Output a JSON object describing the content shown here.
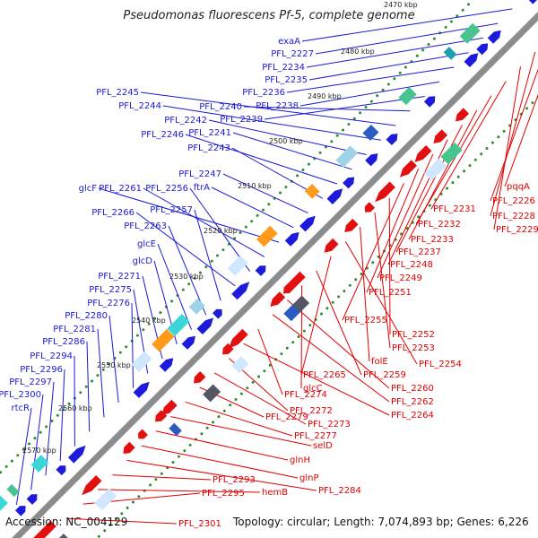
{
  "title": "Pseudomonas fluorescens Pf-5, complete genome",
  "footer": {
    "accession": "Accession: NC_004129",
    "topology": "Topology: circular; Length: 7,074,893 bp; Genes: 6,226"
  },
  "colors": {
    "backbone": "#8c8c8c",
    "forward_label": "#1a1ad4",
    "reverse_label": "#e10000",
    "gc_dots": "#2e8b2e"
  },
  "kbp_ticks": [
    "2470 kbp",
    "2480 kbp",
    "2490 kbp",
    "2500 kbp",
    "2510 kbp",
    "2520 kbp",
    "2530 kbp",
    "2540 kbp",
    "2550 kbp",
    "2560 kbp",
    "2570 kbp"
  ],
  "forward_labels": [
    "exaA",
    "PFL_2227",
    "PFL_2234",
    "PFL_2235",
    "PFL_2236",
    "PFL_2238",
    "PFL_2239",
    "PFL_2240",
    "PFL_2245",
    "PFL_2244",
    "PFL_2242",
    "PFL_2241",
    "PFL_2246",
    "PFL_2243",
    "PFL_2247",
    "ftrA",
    "glcF",
    "PFL_2261",
    "PFL_2256",
    "PFL_2266",
    "PFL_2257",
    "PFL_2263",
    "glcE",
    "glcD",
    "PFL_2271",
    "PFL_2275",
    "PFL_2276",
    "PFL_2280",
    "PFL_2281",
    "PFL_2286",
    "PFL_2294",
    "PFL_2296",
    "PFL_2297",
    "PFL_2300",
    "rtcR"
  ],
  "reverse_labels": [
    "pqqA",
    "PFL_2226",
    "PFL_2228",
    "PFL_2229",
    "PFL_2231",
    "PFL_2232",
    "PFL_2233",
    "PFL_2237",
    "PFL_2248",
    "PFL_2249",
    "PFL_2251",
    "PFL_2255",
    "PFL_2252",
    "PFL_2253",
    "folE",
    "PFL_2254",
    "PFL_2265",
    "PFL_2259",
    "glcC",
    "PFL_2260",
    "PFL_2262",
    "PFL_2274",
    "PFL_2264",
    "PFL_2272",
    "PFL_2273",
    "PFL_2279",
    "PFL_2277",
    "selD",
    "glnH",
    "glnP",
    "PFL_2284",
    "PFL_2293",
    "hemB",
    "PFL_2295",
    "PFL_2301"
  ]
}
